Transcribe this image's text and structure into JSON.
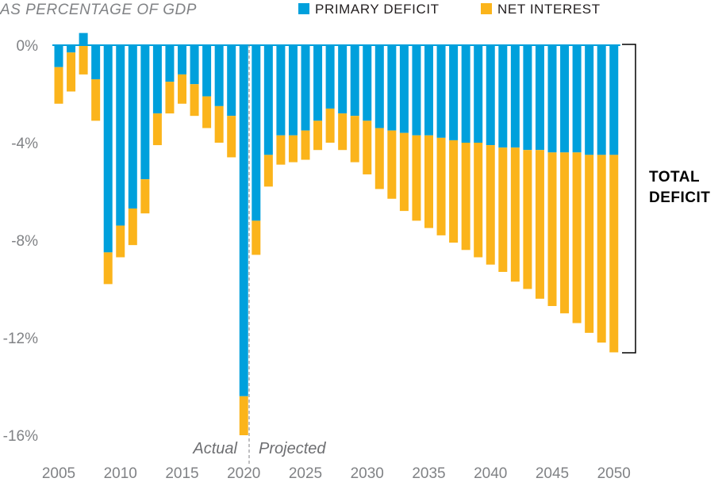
{
  "chart_data": {
    "type": "bar",
    "stacked": true,
    "ylabel": "AS PERCENTAGE OF GDP",
    "ylim": [
      -16,
      0.5
    ],
    "yticks": [
      0,
      -4,
      -8,
      -12,
      -16
    ],
    "ytick_labels": [
      "0%",
      "-4%",
      "-8%",
      "-12%",
      "-16%"
    ],
    "xticks": [
      2005,
      2010,
      2015,
      2020,
      2025,
      2030,
      2035,
      2040,
      2045,
      2050
    ],
    "xtick_labels": [
      "2005",
      "2010",
      "2015",
      "2020",
      "2025",
      "2030",
      "2035",
      "2040",
      "2045",
      "2050"
    ],
    "legend_position": "top",
    "categories": [
      2005,
      2006,
      2007,
      2008,
      2009,
      2010,
      2011,
      2012,
      2013,
      2014,
      2015,
      2016,
      2017,
      2018,
      2019,
      2020,
      2021,
      2022,
      2023,
      2024,
      2025,
      2026,
      2027,
      2028,
      2029,
      2030,
      2031,
      2032,
      2033,
      2034,
      2035,
      2036,
      2037,
      2038,
      2039,
      2040,
      2041,
      2042,
      2043,
      2044,
      2045,
      2046,
      2047,
      2048,
      2049,
      2050
    ],
    "series": [
      {
        "name": "PRIMARY DEFICIT",
        "color": "#00a0dc",
        "values": [
          -0.9,
          -0.3,
          0.5,
          -1.4,
          -8.5,
          -7.4,
          -6.7,
          -5.5,
          -2.8,
          -1.5,
          -1.2,
          -1.6,
          -2.1,
          -2.5,
          -2.9,
          -14.4,
          -7.2,
          -4.5,
          -3.7,
          -3.7,
          -3.5,
          -3.1,
          -2.6,
          -2.8,
          -2.9,
          -3.1,
          -3.4,
          -3.5,
          -3.6,
          -3.7,
          -3.7,
          -3.8,
          -3.9,
          -4.0,
          -4.0,
          -4.1,
          -4.2,
          -4.2,
          -4.3,
          -4.3,
          -4.4,
          -4.4,
          -4.4,
          -4.5,
          -4.5,
          -4.5
        ]
      },
      {
        "name": "NET INTEREST",
        "color": "#fbb41b",
        "values": [
          -1.5,
          -1.6,
          -1.2,
          -1.7,
          -1.3,
          -1.3,
          -1.5,
          -1.4,
          -1.3,
          -1.3,
          -1.2,
          -1.3,
          -1.3,
          -1.5,
          -1.7,
          -1.6,
          -1.4,
          -1.3,
          -1.2,
          -1.1,
          -1.2,
          -1.2,
          -1.4,
          -1.5,
          -1.9,
          -2.2,
          -2.5,
          -2.8,
          -3.2,
          -3.5,
          -3.8,
          -4.0,
          -4.2,
          -4.4,
          -4.7,
          -4.9,
          -5.1,
          -5.5,
          -5.7,
          -6.1,
          -6.3,
          -6.6,
          -7.0,
          -7.3,
          -7.7,
          -8.1
        ]
      }
    ],
    "annotations": {
      "actual": "Actual",
      "projected": "Projected",
      "bracket": [
        "TOTAL",
        "DEFICIT"
      ]
    }
  }
}
